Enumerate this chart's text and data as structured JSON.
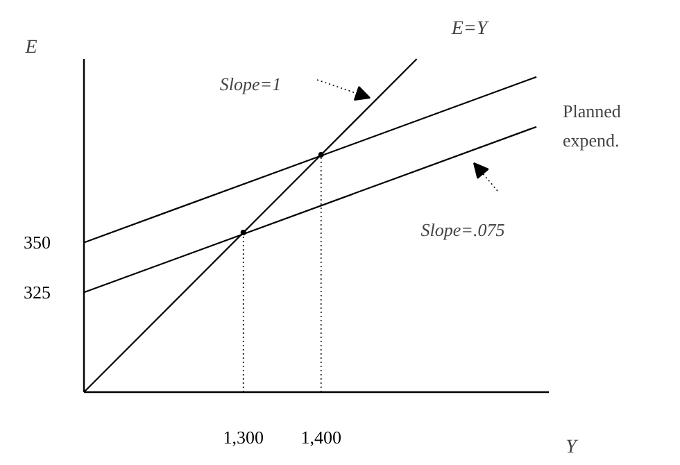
{
  "chart_data": {
    "type": "line",
    "xlabel": "Y",
    "ylabel": "E",
    "xlim": [
      1095,
      1693
    ],
    "ylim": [
      275,
      442
    ],
    "xticks": [
      {
        "value": 1300,
        "label": "1,300"
      },
      {
        "value": 1400,
        "label": "1,400"
      }
    ],
    "yticks": [
      325,
      350
    ],
    "marker": "none",
    "series": [
      {
        "name": "E=Y",
        "color": "#000000",
        "x": [
          1095,
          1523
        ],
        "values": [
          275,
          442
        ],
        "line_style": "solid"
      },
      {
        "color": "#000000",
        "x": [
          1095,
          1677
        ],
        "values": [
          350,
          433
        ],
        "line_style": "solid"
      },
      {
        "color": "#000000",
        "x": [
          1095,
          1677
        ],
        "values": [
          325,
          408
        ],
        "line_style": "solid"
      },
      {
        "type": "lollipop",
        "color": "#000000",
        "x": [
          1300,
          1400
        ],
        "values": [
          355,
          394
        ],
        "line_style": "dotted"
      }
    ],
    "annotations": [
      "Slope=1",
      "Slope=.075",
      "Planned expend."
    ]
  }
}
